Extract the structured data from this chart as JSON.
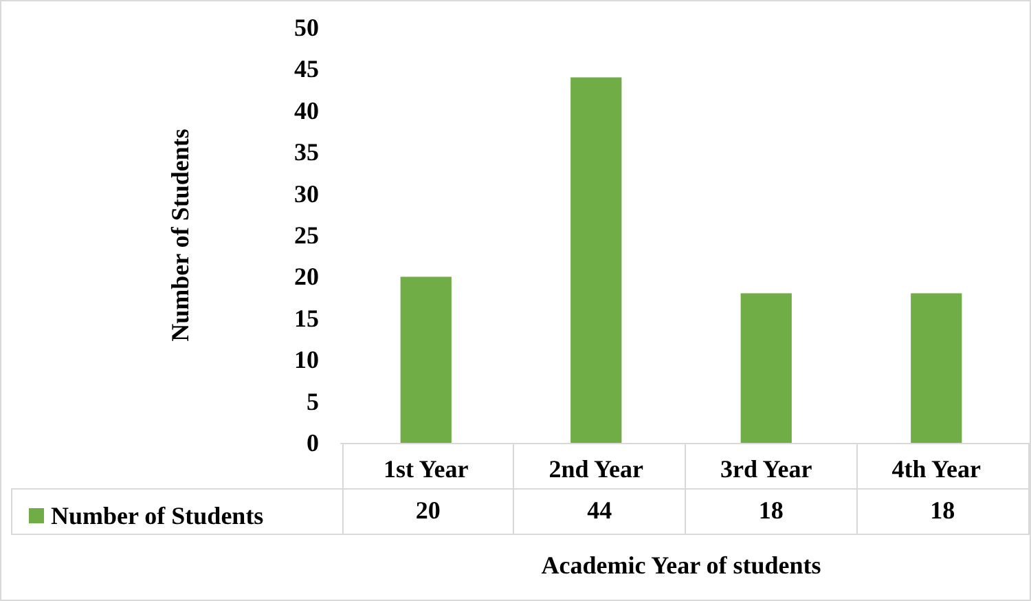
{
  "chart_data": {
    "type": "bar",
    "xlabel": "Academic Year of students",
    "ylabel": "Number of Students",
    "categories": [
      "1st Year",
      "2nd Year",
      "3rd Year",
      "4th Year"
    ],
    "series": [
      {
        "name": "Number of Students",
        "color": "#70ad47",
        "values": [
          20,
          44,
          18,
          18
        ]
      }
    ],
    "ylim": [
      0,
      50
    ],
    "yticks": [
      0,
      5,
      10,
      15,
      20,
      25,
      30,
      35,
      40,
      45,
      50
    ],
    "grid": false,
    "legend": "bottom",
    "data_labels": true
  }
}
